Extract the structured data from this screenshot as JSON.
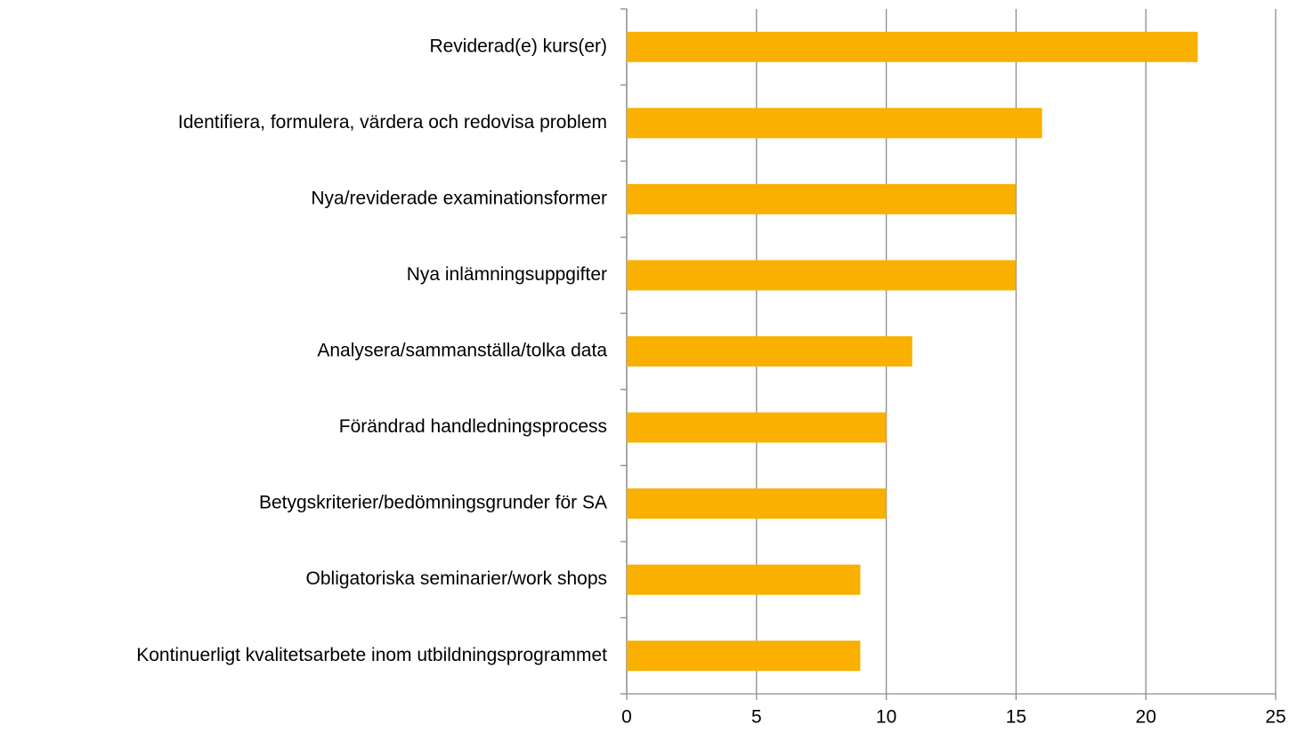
{
  "chart_data": {
    "type": "bar",
    "orientation": "horizontal",
    "categories": [
      "Reviderad(e) kurs(er)",
      "Identifiera, formulera, värdera och redovisa problem",
      "Nya/reviderade examinationsformer",
      "Nya inlämningsuppgifter",
      "Analysera/sammanställa/tolka data",
      "Förändrad handledningsprocess",
      "Betygskriterier/bedömningsgrunder för SA",
      "Obligatoriska seminarier/work shops",
      "Kontinuerligt kvalitetsarbete inom utbildningsprogrammet"
    ],
    "values": [
      22,
      16,
      15,
      15,
      11,
      10,
      10,
      9,
      9
    ],
    "color": "#f9b000",
    "xlim": [
      0,
      25
    ],
    "xticks": [
      0,
      5,
      10,
      15,
      20,
      25
    ],
    "grid": true
  }
}
